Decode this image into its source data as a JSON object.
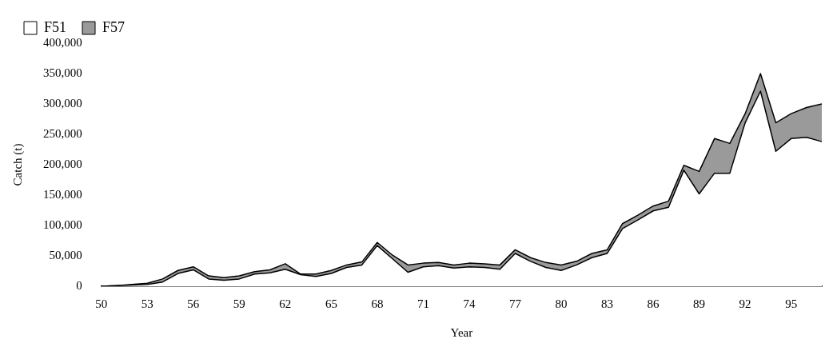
{
  "chart_data": {
    "type": "area",
    "stacked": true,
    "xlabel": "Year",
    "ylabel": "Catch (t)",
    "categories": [
      "50",
      null,
      null,
      "53",
      null,
      null,
      "56",
      null,
      null,
      "59",
      null,
      null,
      "62",
      null,
      null,
      "65",
      null,
      null,
      "68",
      null,
      null,
      "71",
      null,
      null,
      "74",
      null,
      null,
      "77",
      null,
      null,
      "80",
      null,
      null,
      "83",
      null,
      null,
      "86",
      null,
      null,
      "89",
      null,
      null,
      "92",
      null,
      null,
      "95",
      null,
      null
    ],
    "series": [
      {
        "name": "F51",
        "color": "#ffffff",
        "values": [
          0,
          1000,
          2000,
          3000,
          7000,
          21000,
          27000,
          12000,
          10000,
          12000,
          20000,
          22000,
          28000,
          19000,
          16000,
          21000,
          31000,
          35000,
          67000,
          45000,
          23000,
          32000,
          34000,
          30000,
          32000,
          31000,
          28000,
          54000,
          41000,
          31000,
          26000,
          35000,
          47000,
          54000,
          95000,
          109000,
          124000,
          130000,
          191000,
          152000,
          186000,
          186000,
          269000,
          321000,
          222000,
          243000,
          245000,
          238000
        ]
      },
      {
        "name": "F57",
        "color": "#9a9a9a",
        "values": [
          0,
          0,
          1000,
          2000,
          5000,
          5000,
          5000,
          5000,
          4000,
          5000,
          4000,
          5000,
          9000,
          1000,
          4000,
          5000,
          4000,
          5000,
          5000,
          6000,
          12000,
          6000,
          5000,
          5000,
          6000,
          6000,
          7000,
          6000,
          6000,
          8000,
          9000,
          6000,
          7000,
          6000,
          8000,
          8000,
          8000,
          10000,
          8000,
          37000,
          57000,
          49000,
          15000,
          29000,
          47000,
          41000,
          49000,
          62000
        ]
      }
    ],
    "ylim": [
      0,
      400000
    ],
    "yticks": [
      0,
      {
        "value": 50000,
        "label": "50,000"
      },
      {
        "value": 100000,
        "label": "100,000"
      },
      {
        "value": 150000,
        "label": "150,000"
      },
      {
        "value": 200000,
        "label": "200,000"
      },
      {
        "value": 250000,
        "label": "250,000"
      },
      {
        "value": 300000,
        "label": "300,000"
      },
      {
        "value": 350000,
        "label": "350,000"
      },
      {
        "value": 400000,
        "label": "400,000"
      }
    ],
    "grid": false,
    "legend": "top left"
  }
}
